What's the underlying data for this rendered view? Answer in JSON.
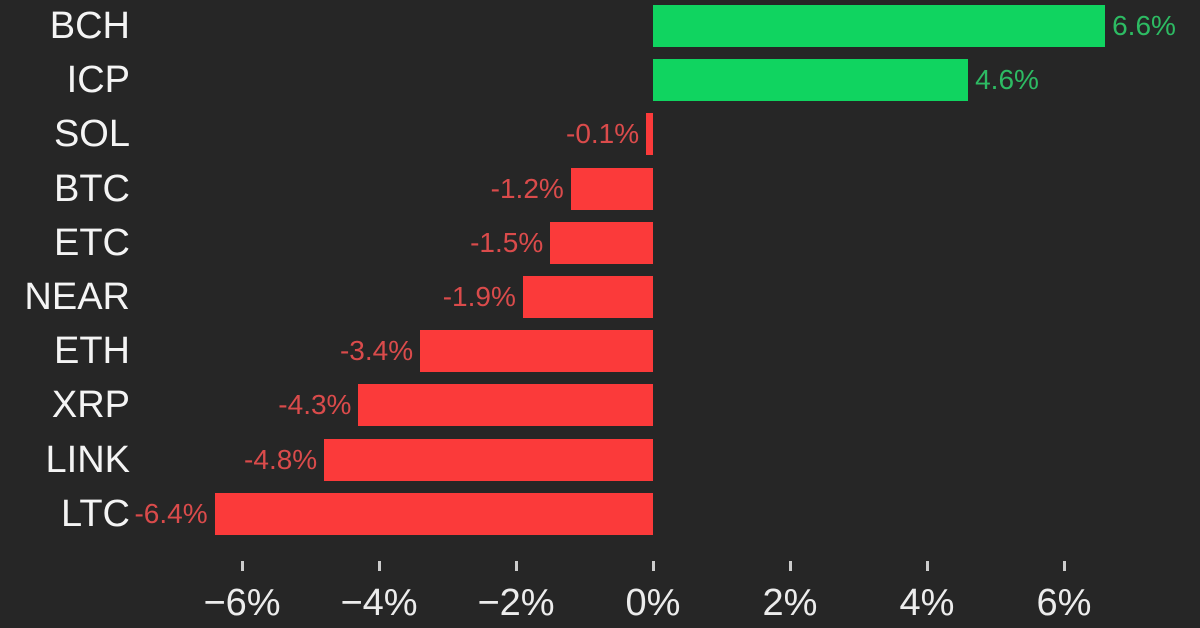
{
  "chart_data": {
    "type": "bar",
    "orientation": "horizontal",
    "title": "",
    "xlabel": "",
    "ylabel": "",
    "xlim": [
      -7.6,
      8.0
    ],
    "grid": false,
    "legend": null,
    "categories": [
      "BCH",
      "ICP",
      "SOL",
      "BTC",
      "ETC",
      "NEAR",
      "ETH",
      "XRP",
      "LINK",
      "LTC"
    ],
    "values": [
      6.6,
      4.6,
      -0.1,
      -1.2,
      -1.5,
      -1.9,
      -3.4,
      -4.3,
      -4.8,
      -6.4
    ],
    "value_labels": [
      "6.6%",
      "4.6%",
      "-0.1%",
      "-1.2%",
      "-1.5%",
      "-1.9%",
      "-3.4%",
      "-4.3%",
      "-4.8%",
      "-6.4%"
    ],
    "x_ticks": [
      {
        "value": -6,
        "label": "−6%"
      },
      {
        "value": -4,
        "label": "−4%"
      },
      {
        "value": -2,
        "label": "−2%"
      },
      {
        "value": 0,
        "label": "0%"
      },
      {
        "value": 2,
        "label": "2%"
      },
      {
        "value": 4,
        "label": "4%"
      },
      {
        "value": 6,
        "label": "6%"
      }
    ],
    "colors": {
      "background": "#262626",
      "positive_bar": "#10d460",
      "negative_bar": "#fb3a3a",
      "positive_value_label": "#2dbb63",
      "negative_value_label": "#da4b4b",
      "category_label": "#f4f4f4",
      "tick_label": "#ececec",
      "tick_mark": "#cccccc"
    }
  }
}
